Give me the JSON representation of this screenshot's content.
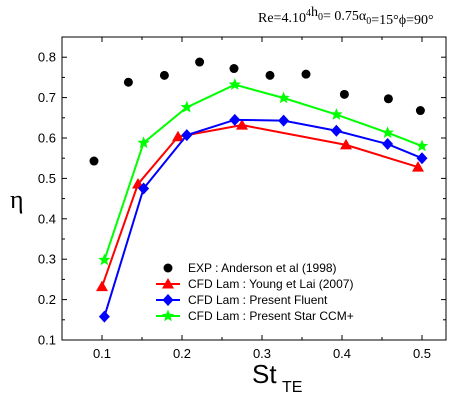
{
  "header": {
    "params": [
      {
        "base": "Re=4.10",
        "sup": "4",
        "sub": ""
      },
      {
        "base": "h",
        "sub": "0",
        "tail": "= 0.75"
      },
      {
        "base": "α",
        "sub": "0",
        "tail": "=15°"
      },
      {
        "base": "ϕ",
        "sub": "",
        "tail": "=90°"
      }
    ]
  },
  "chart_data": {
    "type": "line",
    "xlabel": {
      "main": "St",
      "sub": "TE"
    },
    "ylabel": "η",
    "xlim": [
      0.05,
      0.53
    ],
    "ylim": [
      0.1,
      0.85
    ],
    "xticks": [
      0.1,
      0.2,
      0.3,
      0.4,
      0.5
    ],
    "xtick_labels": [
      "0.1",
      "0.2",
      "0.3",
      "0.4",
      "0.5"
    ],
    "yticks": [
      0.1,
      0.2,
      0.3,
      0.4,
      0.5,
      0.6,
      0.7,
      0.8
    ],
    "ytick_labels": [
      "0.1",
      "0.2",
      "0.3",
      "0.4",
      "0.5",
      "0.6",
      "0.7",
      "0.8"
    ],
    "legend_position": "bottom-center",
    "grid": false,
    "series": [
      {
        "name": "EXP :  Anderson et al (1998)",
        "marker": "circle",
        "color": "#000000",
        "line": false,
        "x": [
          0.09,
          0.133,
          0.178,
          0.222,
          0.265,
          0.31,
          0.355,
          0.403,
          0.458,
          0.498
        ],
        "y": [
          0.543,
          0.738,
          0.755,
          0.788,
          0.772,
          0.755,
          0.758,
          0.708,
          0.697,
          0.668
        ]
      },
      {
        "name": "CFD Lam :  Young et  Lai (2007)",
        "marker": "triangle",
        "color": "#ff0000",
        "line": true,
        "x": [
          0.1,
          0.145,
          0.195,
          0.275,
          0.405,
          0.495
        ],
        "y": [
          0.232,
          0.486,
          0.603,
          0.632,
          0.583,
          0.528
        ]
      },
      {
        "name": "CFD Lam : Present Fluent",
        "marker": "diamond",
        "color": "#0000ff",
        "line": true,
        "x": [
          0.103,
          0.152,
          0.206,
          0.266,
          0.327,
          0.393,
          0.457,
          0.5
        ],
        "y": [
          0.158,
          0.475,
          0.607,
          0.645,
          0.643,
          0.618,
          0.585,
          0.55
        ]
      },
      {
        "name": "CFD Lam : Present Star CCM+",
        "marker": "star",
        "color": "#00ff00",
        "line": true,
        "x": [
          0.103,
          0.152,
          0.206,
          0.266,
          0.327,
          0.393,
          0.457,
          0.5
        ],
        "y": [
          0.298,
          0.588,
          0.676,
          0.732,
          0.699,
          0.658,
          0.613,
          0.58
        ]
      }
    ]
  }
}
